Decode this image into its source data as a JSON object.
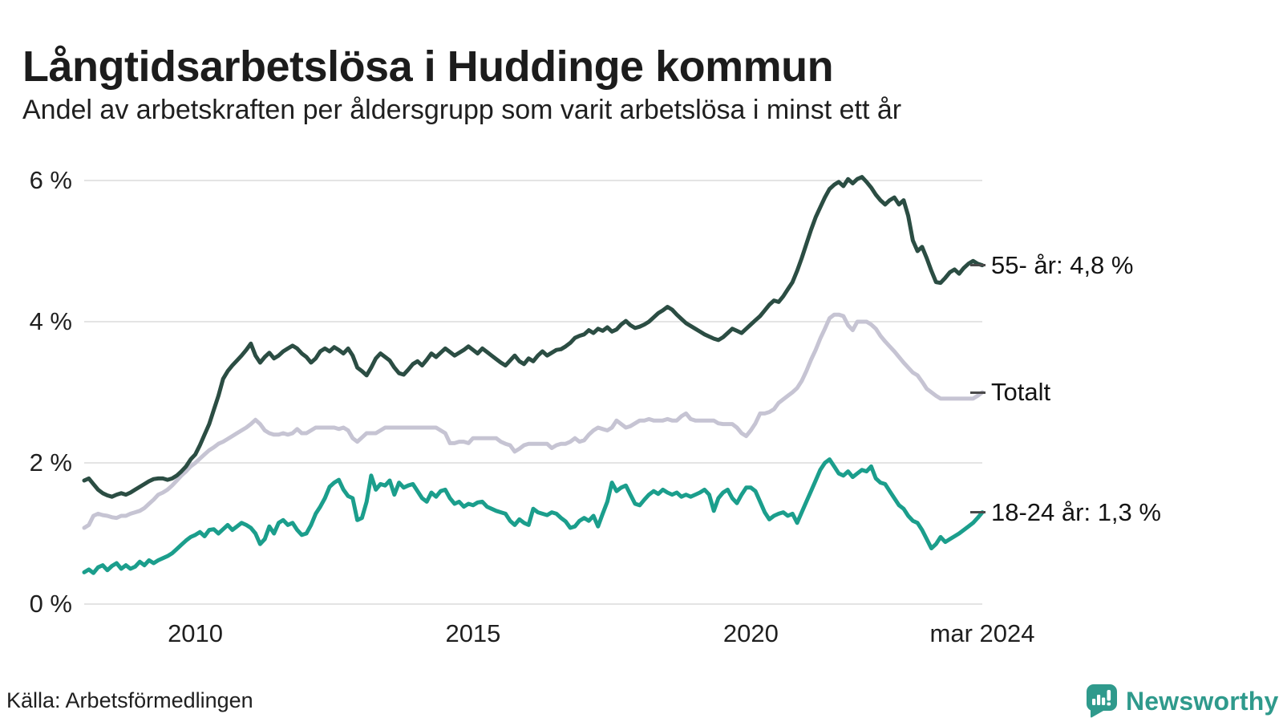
{
  "header": {
    "title": "Långtidsarbetslösa i Huddinge kommun",
    "subtitle": "Andel av arbetskraften per åldersgrupp som varit arbetslösa i minst ett år"
  },
  "footer": {
    "source": "Källa: Arbetsförmedlingen",
    "brand_name": "Newsworthy",
    "brand_color": "#2f9a8c",
    "brand_icon": "newsworthy-speech-bubble-barchart-icon"
  },
  "chart_data": {
    "type": "line",
    "x_start": "2008-01",
    "x_end": "2024-03",
    "x_interval": "monthly",
    "ylim": [
      0,
      6
    ],
    "grid": "horizontal-only",
    "legend_position": "right-of-line-ends",
    "y_ticks": [
      {
        "value": 6,
        "label": "6 %"
      },
      {
        "value": 4,
        "label": "4 %"
      },
      {
        "value": 2,
        "label": "2 %"
      },
      {
        "value": 0,
        "label": "0 %"
      }
    ],
    "x_ticks": [
      {
        "month_index": 24,
        "label": "2010"
      },
      {
        "month_index": 84,
        "label": "2015"
      },
      {
        "month_index": 144,
        "label": "2020"
      },
      {
        "month_index": 194,
        "label": "mar 2024"
      }
    ],
    "series": [
      {
        "name": "55- år",
        "end_label": "55- år: 4,8 %",
        "end_value": "4,8 %",
        "color": "#2b4d43",
        "values": [
          1.75,
          1.78,
          1.7,
          1.62,
          1.57,
          1.54,
          1.52,
          1.55,
          1.57,
          1.55,
          1.58,
          1.62,
          1.66,
          1.7,
          1.74,
          1.77,
          1.78,
          1.78,
          1.76,
          1.78,
          1.82,
          1.88,
          1.95,
          2.05,
          2.12,
          2.25,
          2.4,
          2.55,
          2.75,
          2.95,
          3.19,
          3.3,
          3.38,
          3.45,
          3.52,
          3.6,
          3.69,
          3.52,
          3.42,
          3.5,
          3.56,
          3.48,
          3.52,
          3.58,
          3.62,
          3.66,
          3.62,
          3.55,
          3.5,
          3.42,
          3.48,
          3.58,
          3.62,
          3.58,
          3.64,
          3.6,
          3.55,
          3.62,
          3.52,
          3.35,
          3.3,
          3.24,
          3.35,
          3.48,
          3.55,
          3.5,
          3.45,
          3.35,
          3.27,
          3.25,
          3.32,
          3.4,
          3.44,
          3.38,
          3.46,
          3.55,
          3.5,
          3.56,
          3.62,
          3.57,
          3.52,
          3.56,
          3.6,
          3.65,
          3.6,
          3.55,
          3.62,
          3.57,
          3.52,
          3.47,
          3.42,
          3.38,
          3.45,
          3.52,
          3.44,
          3.4,
          3.48,
          3.44,
          3.52,
          3.58,
          3.52,
          3.56,
          3.6,
          3.61,
          3.65,
          3.7,
          3.77,
          3.8,
          3.82,
          3.88,
          3.84,
          3.9,
          3.87,
          3.92,
          3.86,
          3.89,
          3.96,
          4.01,
          3.95,
          3.91,
          3.93,
          3.96,
          4.0,
          4.06,
          4.12,
          4.16,
          4.21,
          4.17,
          4.1,
          4.04,
          3.98,
          3.94,
          3.9,
          3.86,
          3.82,
          3.79,
          3.76,
          3.74,
          3.78,
          3.84,
          3.9,
          3.87,
          3.84,
          3.9,
          3.96,
          4.02,
          4.08,
          4.16,
          4.24,
          4.3,
          4.28,
          4.36,
          4.46,
          4.56,
          4.72,
          4.9,
          5.1,
          5.3,
          5.48,
          5.62,
          5.76,
          5.88,
          5.94,
          5.98,
          5.92,
          6.02,
          5.96,
          6.02,
          6.05,
          5.98,
          5.9,
          5.8,
          5.72,
          5.66,
          5.72,
          5.76,
          5.66,
          5.72,
          5.5,
          5.15,
          5.0,
          5.06,
          4.9,
          4.72,
          4.56,
          4.55,
          4.62,
          4.7,
          4.74,
          4.68,
          4.76,
          4.82,
          4.86,
          4.82,
          4.8
        ]
      },
      {
        "name": "Totalt",
        "end_label": "Totalt",
        "end_value": "",
        "color": "#c6c4d3",
        "values": [
          1.08,
          1.12,
          1.25,
          1.28,
          1.26,
          1.25,
          1.23,
          1.22,
          1.25,
          1.25,
          1.28,
          1.3,
          1.32,
          1.36,
          1.42,
          1.48,
          1.55,
          1.58,
          1.62,
          1.68,
          1.75,
          1.82,
          1.88,
          1.95,
          2.0,
          2.06,
          2.12,
          2.18,
          2.22,
          2.27,
          2.3,
          2.34,
          2.38,
          2.42,
          2.46,
          2.5,
          2.55,
          2.61,
          2.55,
          2.46,
          2.42,
          2.4,
          2.4,
          2.42,
          2.4,
          2.42,
          2.48,
          2.42,
          2.42,
          2.46,
          2.5,
          2.5,
          2.5,
          2.5,
          2.5,
          2.48,
          2.5,
          2.46,
          2.35,
          2.3,
          2.36,
          2.42,
          2.42,
          2.42,
          2.46,
          2.5,
          2.5,
          2.5,
          2.5,
          2.5,
          2.5,
          2.5,
          2.5,
          2.5,
          2.5,
          2.5,
          2.5,
          2.46,
          2.42,
          2.28,
          2.28,
          2.3,
          2.3,
          2.28,
          2.35,
          2.35,
          2.35,
          2.35,
          2.35,
          2.35,
          2.3,
          2.27,
          2.25,
          2.16,
          2.2,
          2.25,
          2.27,
          2.27,
          2.27,
          2.27,
          2.27,
          2.21,
          2.25,
          2.27,
          2.27,
          2.3,
          2.35,
          2.3,
          2.32,
          2.4,
          2.46,
          2.5,
          2.48,
          2.46,
          2.5,
          2.6,
          2.55,
          2.5,
          2.52,
          2.56,
          2.6,
          2.6,
          2.62,
          2.6,
          2.6,
          2.6,
          2.62,
          2.6,
          2.6,
          2.66,
          2.7,
          2.62,
          2.6,
          2.6,
          2.6,
          2.6,
          2.6,
          2.56,
          2.55,
          2.55,
          2.55,
          2.5,
          2.42,
          2.38,
          2.46,
          2.56,
          2.7,
          2.7,
          2.72,
          2.76,
          2.85,
          2.9,
          2.95,
          3.0,
          3.06,
          3.16,
          3.3,
          3.46,
          3.6,
          3.76,
          3.9,
          4.05,
          4.1,
          4.1,
          4.08,
          3.95,
          3.88,
          4.0,
          4.0,
          4.0,
          3.96,
          3.9,
          3.8,
          3.72,
          3.65,
          3.58,
          3.5,
          3.42,
          3.35,
          3.28,
          3.24,
          3.15,
          3.05,
          3.0,
          2.95,
          2.91,
          2.91,
          2.91,
          2.91,
          2.91,
          2.91,
          2.91,
          2.91,
          2.95,
          3.0
        ]
      },
      {
        "name": "18-24 år",
        "end_label": "18-24 år: 1,3 %",
        "end_value": "1,3 %",
        "color": "#1b9e8c",
        "values": [
          0.45,
          0.49,
          0.44,
          0.52,
          0.55,
          0.48,
          0.54,
          0.58,
          0.5,
          0.55,
          0.5,
          0.53,
          0.6,
          0.55,
          0.62,
          0.58,
          0.62,
          0.65,
          0.68,
          0.72,
          0.78,
          0.84,
          0.9,
          0.95,
          0.98,
          1.02,
          0.96,
          1.05,
          1.06,
          1.0,
          1.06,
          1.12,
          1.05,
          1.1,
          1.15,
          1.12,
          1.08,
          1.0,
          0.85,
          0.92,
          1.1,
          1.0,
          1.15,
          1.19,
          1.12,
          1.15,
          1.05,
          0.98,
          1.0,
          1.12,
          1.28,
          1.38,
          1.5,
          1.66,
          1.72,
          1.76,
          1.62,
          1.53,
          1.5,
          1.19,
          1.22,
          1.45,
          1.82,
          1.62,
          1.7,
          1.68,
          1.75,
          1.55,
          1.72,
          1.65,
          1.68,
          1.7,
          1.6,
          1.5,
          1.45,
          1.58,
          1.52,
          1.6,
          1.62,
          1.5,
          1.42,
          1.45,
          1.38,
          1.42,
          1.4,
          1.44,
          1.45,
          1.38,
          1.35,
          1.32,
          1.3,
          1.28,
          1.18,
          1.12,
          1.2,
          1.15,
          1.12,
          1.35,
          1.3,
          1.28,
          1.26,
          1.3,
          1.28,
          1.22,
          1.17,
          1.08,
          1.1,
          1.18,
          1.22,
          1.18,
          1.25,
          1.1,
          1.28,
          1.45,
          1.72,
          1.6,
          1.65,
          1.68,
          1.55,
          1.42,
          1.4,
          1.48,
          1.55,
          1.6,
          1.56,
          1.62,
          1.58,
          1.55,
          1.58,
          1.52,
          1.55,
          1.52,
          1.55,
          1.58,
          1.62,
          1.55,
          1.32,
          1.5,
          1.58,
          1.62,
          1.5,
          1.43,
          1.55,
          1.65,
          1.65,
          1.6,
          1.45,
          1.3,
          1.2,
          1.25,
          1.28,
          1.3,
          1.25,
          1.28,
          1.15,
          1.3,
          1.45,
          1.6,
          1.75,
          1.9,
          2.0,
          2.05,
          1.95,
          1.85,
          1.82,
          1.88,
          1.8,
          1.85,
          1.9,
          1.88,
          1.95,
          1.78,
          1.72,
          1.7,
          1.6,
          1.5,
          1.4,
          1.35,
          1.25,
          1.18,
          1.15,
          1.05,
          0.92,
          0.79,
          0.85,
          0.95,
          0.88,
          0.92,
          0.96,
          1.0,
          1.05,
          1.1,
          1.15,
          1.22,
          1.3
        ]
      }
    ]
  }
}
